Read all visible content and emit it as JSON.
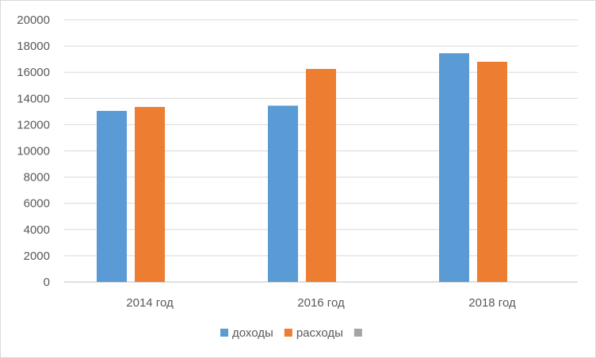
{
  "chart_data": {
    "type": "bar",
    "categories": [
      "2014 год",
      "2016 год",
      "2018 год"
    ],
    "series": [
      {
        "name": "доходы",
        "values": [
          13050,
          13450,
          17450
        ],
        "color": "#5b9bd5"
      },
      {
        "name": "расходы",
        "values": [
          13350,
          16250,
          16800
        ],
        "color": "#ed7d31"
      },
      {
        "name": "",
        "values": [
          null,
          null,
          null
        ],
        "color": "#a5a5a5"
      }
    ],
    "yticks": [
      "0",
      "2000",
      "4000",
      "6000",
      "8000",
      "10000",
      "12000",
      "14000",
      "16000",
      "18000",
      "20000"
    ],
    "ylim": [
      0,
      20000
    ],
    "grid": true,
    "legend_position": "bottom"
  }
}
